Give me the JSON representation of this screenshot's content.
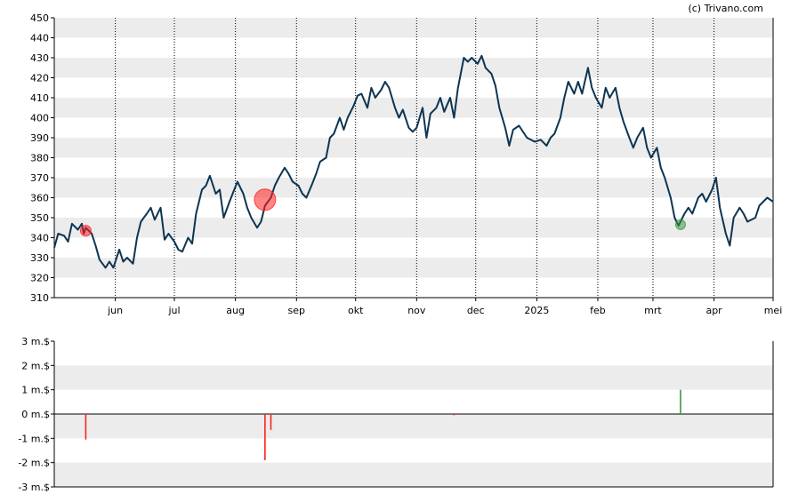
{
  "credit": "(c) Trivano.com",
  "chart_data": [
    {
      "type": "line",
      "title": "",
      "xlabel": "",
      "ylabel": "",
      "ylim": [
        310,
        450
      ],
      "yticks": [
        310,
        320,
        330,
        340,
        350,
        360,
        370,
        380,
        390,
        400,
        410,
        420,
        430,
        440,
        450
      ],
      "xlim": [
        "2024-05-01",
        "2025-05-01"
      ],
      "xticks": [
        {
          "date": "2024-06-01",
          "label": "jun"
        },
        {
          "date": "2024-07-01",
          "label": "jul"
        },
        {
          "date": "2024-08-01",
          "label": "aug"
        },
        {
          "date": "2024-09-01",
          "label": "sep"
        },
        {
          "date": "2024-10-01",
          "label": "okt"
        },
        {
          "date": "2024-11-01",
          "label": "nov"
        },
        {
          "date": "2024-12-01",
          "label": "dec"
        },
        {
          "date": "2025-01-01",
          "label": "2025"
        },
        {
          "date": "2025-02-01",
          "label": "feb"
        },
        {
          "date": "2025-03-01",
          "label": "mrt"
        },
        {
          "date": "2025-04-01",
          "label": "apr"
        },
        {
          "date": "2025-05-01",
          "label": "mei"
        }
      ],
      "grid": true,
      "colors": {
        "line": "#0d3552",
        "band": "#ececec",
        "sell": "#ff2020",
        "buy": "#3c9a3c"
      },
      "series": [
        {
          "values": [
            [
              "2024-05-01",
              335
            ],
            [
              "2024-05-03",
              342
            ],
            [
              "2024-05-06",
              341
            ],
            [
              "2024-05-08",
              338
            ],
            [
              "2024-05-10",
              347
            ],
            [
              "2024-05-13",
              344
            ],
            [
              "2024-05-15",
              347
            ],
            [
              "2024-05-16",
              342
            ],
            [
              "2024-05-17",
              345
            ],
            [
              "2024-05-20",
              342
            ],
            [
              "2024-05-22",
              336
            ],
            [
              "2024-05-24",
              329
            ],
            [
              "2024-05-27",
              325
            ],
            [
              "2024-05-29",
              328
            ],
            [
              "2024-05-31",
              325
            ],
            [
              "2024-06-03",
              334
            ],
            [
              "2024-06-05",
              328
            ],
            [
              "2024-06-07",
              330
            ],
            [
              "2024-06-10",
              327
            ],
            [
              "2024-06-12",
              340
            ],
            [
              "2024-06-14",
              348
            ],
            [
              "2024-06-17",
              352
            ],
            [
              "2024-06-19",
              355
            ],
            [
              "2024-06-21",
              349
            ],
            [
              "2024-06-24",
              355
            ],
            [
              "2024-06-26",
              339
            ],
            [
              "2024-06-28",
              342
            ],
            [
              "2024-07-01",
              338
            ],
            [
              "2024-07-03",
              334
            ],
            [
              "2024-07-05",
              333
            ],
            [
              "2024-07-08",
              340
            ],
            [
              "2024-07-10",
              337
            ],
            [
              "2024-07-12",
              352
            ],
            [
              "2024-07-15",
              364
            ],
            [
              "2024-07-17",
              366
            ],
            [
              "2024-07-19",
              371
            ],
            [
              "2024-07-22",
              362
            ],
            [
              "2024-07-24",
              364
            ],
            [
              "2024-07-26",
              350
            ],
            [
              "2024-07-29",
              358
            ],
            [
              "2024-07-31",
              363
            ],
            [
              "2024-08-02",
              368
            ],
            [
              "2024-08-05",
              362
            ],
            [
              "2024-08-07",
              355
            ],
            [
              "2024-08-09",
              350
            ],
            [
              "2024-08-12",
              345
            ],
            [
              "2024-08-14",
              348
            ],
            [
              "2024-08-16",
              356
            ],
            [
              "2024-08-19",
              360
            ],
            [
              "2024-08-21",
              366
            ],
            [
              "2024-08-23",
              370
            ],
            [
              "2024-08-26",
              375
            ],
            [
              "2024-08-28",
              372
            ],
            [
              "2024-08-30",
              368
            ],
            [
              "2024-09-02",
              366
            ],
            [
              "2024-09-04",
              362
            ],
            [
              "2024-09-06",
              360
            ],
            [
              "2024-09-09",
              367
            ],
            [
              "2024-09-11",
              372
            ],
            [
              "2024-09-13",
              378
            ],
            [
              "2024-09-16",
              380
            ],
            [
              "2024-09-18",
              390
            ],
            [
              "2024-09-20",
              392
            ],
            [
              "2024-09-23",
              400
            ],
            [
              "2024-09-25",
              394
            ],
            [
              "2024-09-27",
              400
            ],
            [
              "2024-09-30",
              406
            ],
            [
              "2024-10-02",
              411
            ],
            [
              "2024-10-04",
              412
            ],
            [
              "2024-10-07",
              405
            ],
            [
              "2024-10-09",
              415
            ],
            [
              "2024-10-11",
              410
            ],
            [
              "2024-10-14",
              414
            ],
            [
              "2024-10-16",
              418
            ],
            [
              "2024-10-18",
              415
            ],
            [
              "2024-10-21",
              405
            ],
            [
              "2024-10-23",
              400
            ],
            [
              "2024-10-25",
              404
            ],
            [
              "2024-10-28",
              395
            ],
            [
              "2024-10-30",
              393
            ],
            [
              "2024-11-01",
              395
            ],
            [
              "2024-11-04",
              405
            ],
            [
              "2024-11-06",
              390
            ],
            [
              "2024-11-08",
              402
            ],
            [
              "2024-11-11",
              405
            ],
            [
              "2024-11-13",
              410
            ],
            [
              "2024-11-15",
              403
            ],
            [
              "2024-11-18",
              410
            ],
            [
              "2024-11-20",
              400
            ],
            [
              "2024-11-22",
              415
            ],
            [
              "2024-11-25",
              430
            ],
            [
              "2024-11-27",
              428
            ],
            [
              "2024-11-29",
              430
            ],
            [
              "2024-12-02",
              427
            ],
            [
              "2024-12-04",
              431
            ],
            [
              "2024-12-06",
              425
            ],
            [
              "2024-12-09",
              422
            ],
            [
              "2024-12-11",
              416
            ],
            [
              "2024-12-13",
              405
            ],
            [
              "2024-12-16",
              395
            ],
            [
              "2024-12-18",
              386
            ],
            [
              "2024-12-20",
              394
            ],
            [
              "2024-12-23",
              396
            ],
            [
              "2024-12-27",
              390
            ],
            [
              "2024-12-31",
              388
            ],
            [
              "2025-01-03",
              389
            ],
            [
              "2025-01-06",
              386
            ],
            [
              "2025-01-08",
              390
            ],
            [
              "2025-01-10",
              392
            ],
            [
              "2025-01-13",
              400
            ],
            [
              "2025-01-15",
              410
            ],
            [
              "2025-01-17",
              418
            ],
            [
              "2025-01-20",
              412
            ],
            [
              "2025-01-22",
              418
            ],
            [
              "2025-01-24",
              412
            ],
            [
              "2025-01-27",
              425
            ],
            [
              "2025-01-29",
              415
            ],
            [
              "2025-01-31",
              410
            ],
            [
              "2025-02-03",
              405
            ],
            [
              "2025-02-05",
              415
            ],
            [
              "2025-02-07",
              410
            ],
            [
              "2025-02-10",
              415
            ],
            [
              "2025-02-12",
              405
            ],
            [
              "2025-02-14",
              398
            ],
            [
              "2025-02-17",
              390
            ],
            [
              "2025-02-19",
              385
            ],
            [
              "2025-02-21",
              390
            ],
            [
              "2025-02-24",
              395
            ],
            [
              "2025-02-26",
              385
            ],
            [
              "2025-02-28",
              380
            ],
            [
              "2025-03-03",
              385
            ],
            [
              "2025-03-05",
              375
            ],
            [
              "2025-03-07",
              370
            ],
            [
              "2025-03-10",
              360
            ],
            [
              "2025-03-12",
              350
            ],
            [
              "2025-03-14",
              346
            ],
            [
              "2025-03-17",
              352
            ],
            [
              "2025-03-19",
              355
            ],
            [
              "2025-03-21",
              352
            ],
            [
              "2025-03-24",
              360
            ],
            [
              "2025-03-26",
              362
            ],
            [
              "2025-03-28",
              358
            ],
            [
              "2025-03-31",
              364
            ],
            [
              "2025-04-02",
              370
            ],
            [
              "2025-04-04",
              355
            ],
            [
              "2025-04-07",
              342
            ],
            [
              "2025-04-09",
              336
            ],
            [
              "2025-04-11",
              350
            ],
            [
              "2025-04-14",
              355
            ],
            [
              "2025-04-16",
              352
            ],
            [
              "2025-04-18",
              348
            ],
            [
              "2025-04-22",
              350
            ],
            [
              "2025-04-24",
              356
            ],
            [
              "2025-04-28",
              360
            ],
            [
              "2025-05-01",
              358
            ]
          ]
        }
      ],
      "markers": [
        {
          "date": "2024-05-17",
          "value": 343.5,
          "kind": "sell",
          "radius": 6
        },
        {
          "date": "2024-08-16",
          "value": 359,
          "kind": "sell",
          "radius": 12
        },
        {
          "date": "2025-03-15",
          "value": 346.5,
          "kind": "buy",
          "radius": 5.5
        }
      ]
    },
    {
      "type": "bar",
      "title": "",
      "xlabel": "",
      "ylabel": "",
      "ylim": [
        -3,
        3
      ],
      "yticks": [
        {
          "value": 3,
          "label": "3 m.$"
        },
        {
          "value": 2,
          "label": "2 m.$"
        },
        {
          "value": 1,
          "label": "1 m.$"
        },
        {
          "value": 0,
          "label": "0 m.$"
        },
        {
          "value": -1,
          "label": "-1 m.$"
        },
        {
          "value": -2,
          "label": "-2 m.$"
        },
        {
          "value": -3,
          "label": "-3 m.$"
        }
      ],
      "grid": true,
      "bars": [
        {
          "date": "2024-05-17",
          "value": -1.05
        },
        {
          "date": "2024-08-16",
          "value": -1.9
        },
        {
          "date": "2024-08-19",
          "value": -0.65
        },
        {
          "date": "2024-11-20",
          "value": -0.05
        },
        {
          "date": "2025-03-15",
          "value": 1.0
        }
      ]
    }
  ]
}
